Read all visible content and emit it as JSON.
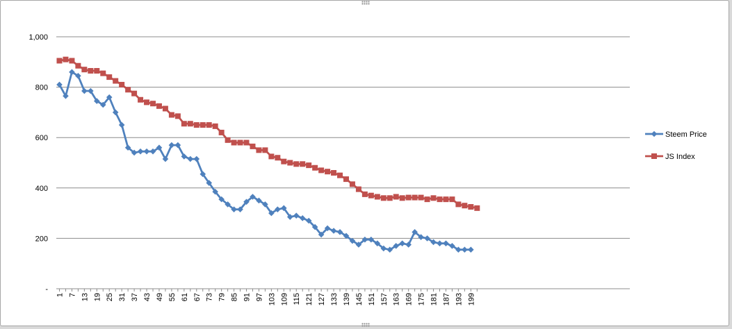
{
  "chart_data": {
    "type": "line",
    "title": "",
    "xlabel": "",
    "ylabel": "",
    "ylim": [
      0,
      1000
    ],
    "yticks": [
      "-",
      "200",
      "400",
      "600",
      "800",
      "1,000"
    ],
    "ytick_values": [
      0,
      200,
      400,
      600,
      800,
      1000
    ],
    "x_range": [
      1,
      274
    ],
    "x_step": 3,
    "x_label_step": 6,
    "grid": "horizontal",
    "legend_position": "right",
    "series": [
      {
        "name": "Steem Price",
        "color": "#4f81bd",
        "marker": "diamond",
        "values": [
          810,
          765,
          860,
          845,
          785,
          785,
          745,
          730,
          760,
          700,
          650,
          560,
          540,
          545,
          545,
          545,
          560,
          515,
          570,
          570,
          525,
          515,
          515,
          455,
          420,
          385,
          355,
          335,
          315,
          315,
          345,
          365,
          350,
          335,
          300,
          315,
          320,
          285,
          290,
          280,
          270,
          245,
          215,
          240,
          230,
          225,
          210,
          190,
          175,
          195,
          195,
          180,
          160,
          155,
          170,
          180,
          175,
          225,
          205,
          200,
          185,
          180,
          180,
          170,
          155,
          155,
          155
        ]
      },
      {
        "name": "JS Index",
        "color": "#c0504d",
        "marker": "square",
        "values": [
          905,
          910,
          905,
          885,
          870,
          865,
          865,
          855,
          840,
          825,
          810,
          790,
          775,
          750,
          740,
          735,
          725,
          715,
          690,
          685,
          655,
          655,
          650,
          650,
          650,
          645,
          620,
          590,
          580,
          580,
          580,
          565,
          550,
          550,
          525,
          520,
          505,
          500,
          495,
          495,
          490,
          480,
          470,
          465,
          460,
          450,
          435,
          415,
          395,
          375,
          370,
          365,
          360,
          360,
          365,
          360,
          362,
          362,
          362,
          355,
          360,
          355,
          355,
          355,
          335,
          330,
          325,
          320
        ]
      }
    ]
  }
}
